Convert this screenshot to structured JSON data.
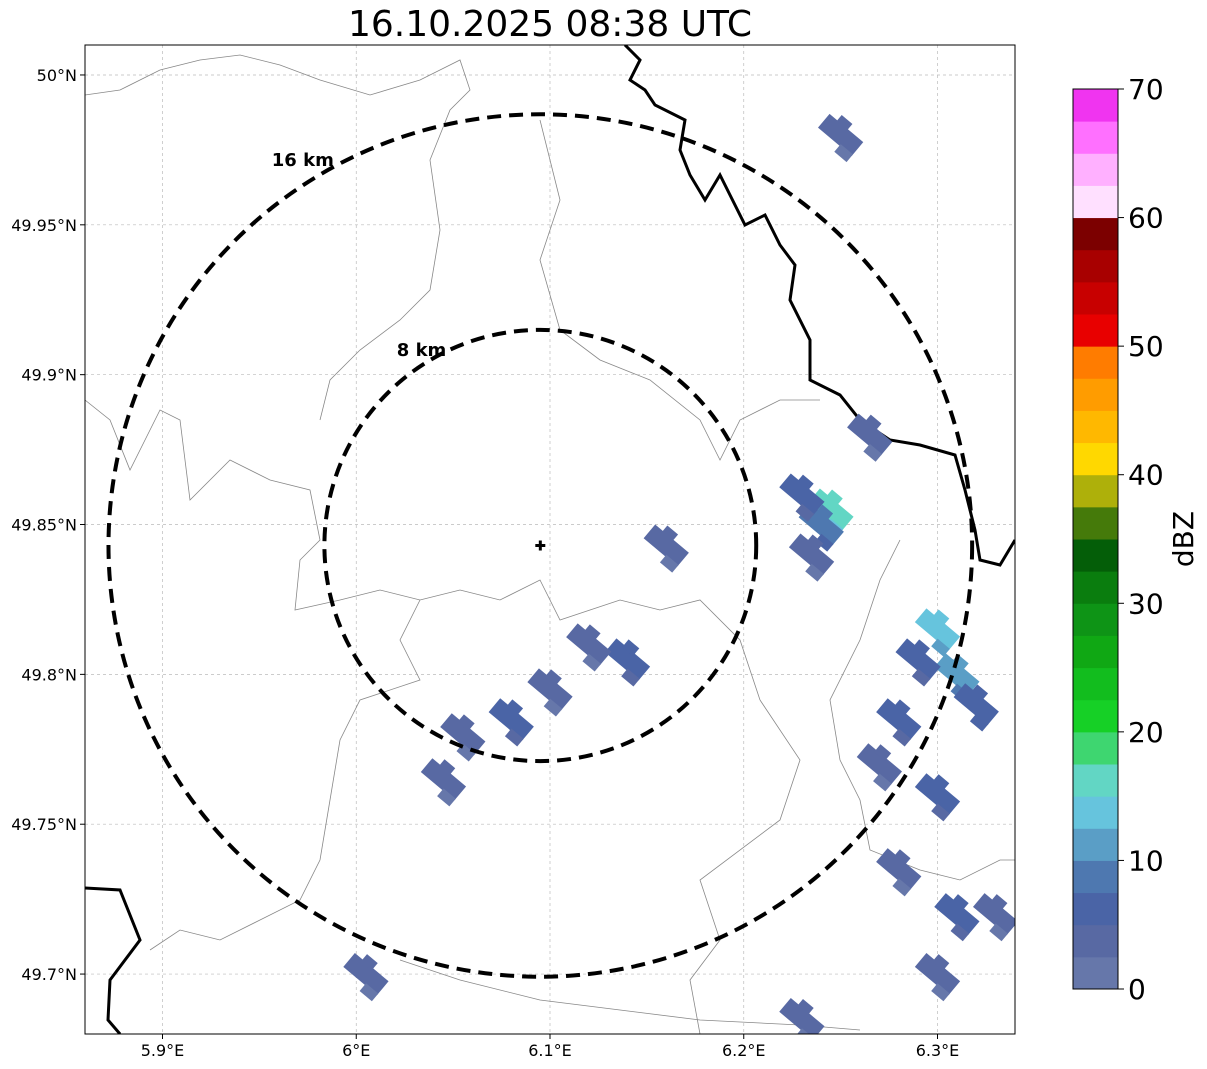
{
  "title": "16.10.2025 08:38 UTC",
  "map": {
    "lon_range": [
      5.86,
      6.34
    ],
    "lat_range": [
      49.68,
      50.01
    ],
    "lon_ticks": [
      {
        "value": 5.9,
        "label": "5.9°E"
      },
      {
        "value": 6.0,
        "label": "6°E"
      },
      {
        "value": 6.1,
        "label": "6.1°E"
      },
      {
        "value": 6.2,
        "label": "6.2°E"
      },
      {
        "value": 6.3,
        "label": "6.3°E"
      }
    ],
    "lat_ticks": [
      {
        "value": 50.0,
        "label": "50°N"
      },
      {
        "value": 49.95,
        "label": "49.95°N"
      },
      {
        "value": 49.9,
        "label": "49.9°N"
      },
      {
        "value": 49.85,
        "label": "49.85°N"
      },
      {
        "value": 49.8,
        "label": "49.8°N"
      },
      {
        "value": 49.75,
        "label": "49.75°N"
      },
      {
        "value": 49.7,
        "label": "49.7°N"
      }
    ],
    "gridlines": true,
    "center": {
      "lon": 6.095,
      "lat": 49.843
    },
    "rings": [
      {
        "radius_km": 8,
        "label": "8 km"
      },
      {
        "radius_km": 16,
        "label": "16 km"
      }
    ],
    "echo_cells": [
      {
        "lon": 6.245,
        "lat": 49.855,
        "dbz": 15
      },
      {
        "lon": 6.24,
        "lat": 49.85,
        "dbz": 8
      },
      {
        "lon": 6.23,
        "lat": 49.86,
        "dbz": 5
      },
      {
        "lon": 6.235,
        "lat": 49.84,
        "dbz": 4
      },
      {
        "lon": 6.16,
        "lat": 49.843,
        "dbz": 4
      },
      {
        "lon": 6.265,
        "lat": 49.88,
        "dbz": 4
      },
      {
        "lon": 6.25,
        "lat": 49.98,
        "dbz": 3
      },
      {
        "lon": 6.14,
        "lat": 49.805,
        "dbz": 5
      },
      {
        "lon": 6.12,
        "lat": 49.81,
        "dbz": 4
      },
      {
        "lon": 6.1,
        "lat": 49.795,
        "dbz": 3
      },
      {
        "lon": 6.08,
        "lat": 49.785,
        "dbz": 5
      },
      {
        "lon": 6.055,
        "lat": 49.78,
        "dbz": 4
      },
      {
        "lon": 6.045,
        "lat": 49.765,
        "dbz": 3
      },
      {
        "lon": 6.3,
        "lat": 49.815,
        "dbz": 13
      },
      {
        "lon": 6.31,
        "lat": 49.8,
        "dbz": 11
      },
      {
        "lon": 6.29,
        "lat": 49.805,
        "dbz": 6
      },
      {
        "lon": 6.32,
        "lat": 49.79,
        "dbz": 7
      },
      {
        "lon": 6.28,
        "lat": 49.785,
        "dbz": 5
      },
      {
        "lon": 6.27,
        "lat": 49.77,
        "dbz": 4
      },
      {
        "lon": 6.3,
        "lat": 49.76,
        "dbz": 5
      },
      {
        "lon": 6.28,
        "lat": 49.735,
        "dbz": 4
      },
      {
        "lon": 6.31,
        "lat": 49.72,
        "dbz": 5
      },
      {
        "lon": 6.33,
        "lat": 49.72,
        "dbz": 4
      },
      {
        "lon": 6.3,
        "lat": 49.7,
        "dbz": 3
      },
      {
        "lon": 6.005,
        "lat": 49.7,
        "dbz": 4
      },
      {
        "lon": 6.23,
        "lat": 49.685,
        "dbz": 3
      }
    ]
  },
  "colorbar": {
    "label": "dBZ",
    "min": 0,
    "max": 70,
    "ticks": [
      "0",
      "10",
      "20",
      "30",
      "40",
      "50",
      "60",
      "70"
    ],
    "colors": [
      "#6677aa",
      "#5869a3",
      "#4a64a6",
      "#4e78b0",
      "#5a9ec6",
      "#66c4dd",
      "#62d6c4",
      "#3ed670",
      "#16d026",
      "#12bd1e",
      "#10a814",
      "#0e9416",
      "#0a7d0e",
      "#045e08",
      "#457a0a",
      "#aeb00a",
      "#ffd800",
      "#ffb800",
      "#ff9c00",
      "#ff7c00",
      "#e80000",
      "#c80000",
      "#a80000",
      "#7c0000",
      "#ffe0ff",
      "#ffb0ff",
      "#ff70ff",
      "#f034f0"
    ]
  }
}
